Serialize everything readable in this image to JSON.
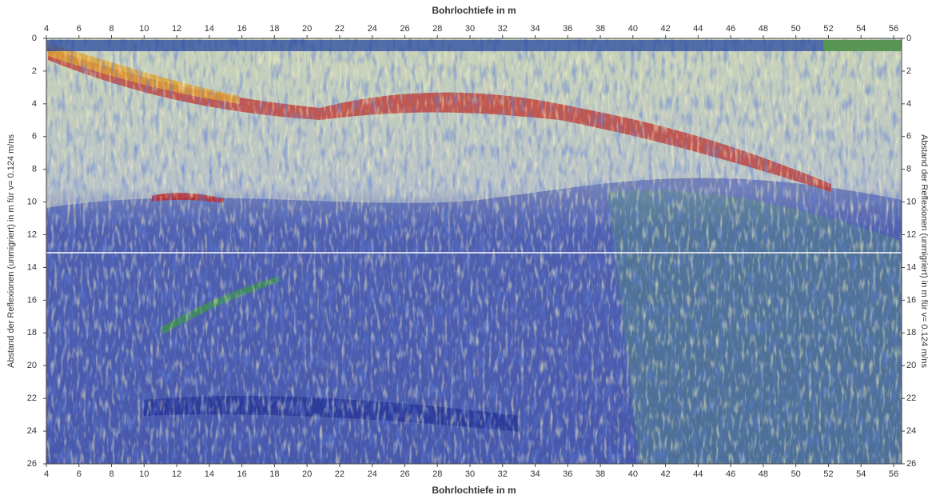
{
  "top_axis": {
    "title": "Bohrlochtiefe in m",
    "ticks": [
      "4",
      "6",
      "8",
      "10",
      "12",
      "14",
      "16",
      "18",
      "20",
      "22",
      "24",
      "26",
      "28",
      "30",
      "32",
      "34",
      "36",
      "38",
      "40",
      "42",
      "44",
      "46",
      "48",
      "50",
      "52",
      "54",
      "56"
    ]
  },
  "bottom_axis": {
    "title": "Bohrlochtiefe in m",
    "ticks": [
      "4",
      "6",
      "8",
      "10",
      "12",
      "14",
      "16",
      "18",
      "20",
      "22",
      "24",
      "26",
      "28",
      "30",
      "32",
      "34",
      "36",
      "38",
      "40",
      "42",
      "44",
      "46",
      "48",
      "50",
      "52",
      "54",
      "56"
    ]
  },
  "left_axis": {
    "title": "Abstand der Reflexionen (unmigriert) in m für v= 0.124 m/ns",
    "ticks": [
      "0",
      "2",
      "4",
      "6",
      "8",
      "10",
      "12",
      "14",
      "16",
      "18",
      "20",
      "22",
      "24",
      "26"
    ]
  },
  "right_axis": {
    "title": "Abstand der Reflexionen (unmigriert) in m für v= 0.124 m/ns",
    "ticks": [
      "0",
      "2",
      "4",
      "6",
      "8",
      "10",
      "12",
      "14",
      "16",
      "18",
      "20",
      "22",
      "24",
      "26"
    ]
  }
}
